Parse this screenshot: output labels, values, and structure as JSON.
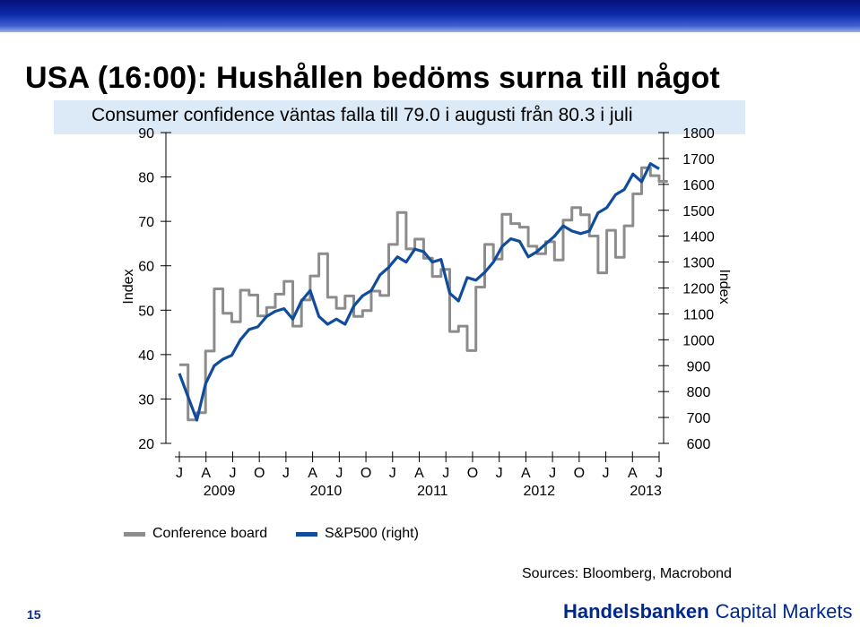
{
  "slide": {
    "title": "USA (16:00): Hushållen bedöms surna till något",
    "subtitle": "Consumer confidence väntas falla till 79.0 i augusti från 80.3 i juli",
    "page_number": "15",
    "sources": "Sources: Bloomberg, Macrobond",
    "brand_name": "Handelsbanken",
    "brand_sub": "Capital Markets"
  },
  "colors": {
    "conference_board": "#8c8c8c",
    "sp500": "#0f4c9c",
    "brand": "#00288c",
    "subtitle_bg": "#dce9f7"
  },
  "chart_data": {
    "type": "line",
    "left_axis": {
      "label": "Index",
      "ticks": [
        20,
        30,
        40,
        50,
        60,
        70,
        80,
        90
      ],
      "range": [
        20,
        90
      ]
    },
    "right_axis": {
      "label": "Index",
      "ticks": [
        600,
        700,
        800,
        900,
        1000,
        1100,
        1200,
        1300,
        1400,
        1500,
        1600,
        1700,
        1800
      ],
      "range": [
        600,
        1800
      ]
    },
    "x_tick_labels": [
      "J",
      "A",
      "J",
      "O",
      "J",
      "A",
      "J",
      "O",
      "J",
      "A",
      "J",
      "O",
      "J",
      "A",
      "J",
      "O",
      "J",
      "A",
      "J"
    ],
    "year_labels": [
      "2009",
      "2010",
      "2011",
      "2012",
      "2013"
    ],
    "grid": false,
    "legend_placement": "bottom-left",
    "series": [
      {
        "name": "Conference board",
        "axis": "left",
        "step": true,
        "x": [
          "2009-01",
          "2009-02",
          "2009-03",
          "2009-04",
          "2009-05",
          "2009-06",
          "2009-07",
          "2009-08",
          "2009-09",
          "2009-10",
          "2009-11",
          "2009-12",
          "2010-01",
          "2010-02",
          "2010-03",
          "2010-04",
          "2010-05",
          "2010-06",
          "2010-07",
          "2010-08",
          "2010-09",
          "2010-10",
          "2010-11",
          "2010-12",
          "2011-01",
          "2011-02",
          "2011-03",
          "2011-04",
          "2011-05",
          "2011-06",
          "2011-07",
          "2011-08",
          "2011-09",
          "2011-10",
          "2011-11",
          "2011-12",
          "2012-01",
          "2012-02",
          "2012-03",
          "2012-04",
          "2012-05",
          "2012-06",
          "2012-07",
          "2012-08",
          "2012-09",
          "2012-10",
          "2012-11",
          "2012-12",
          "2013-01",
          "2013-02",
          "2013-03",
          "2013-04",
          "2013-05",
          "2013-06",
          "2013-07",
          "2013-08"
        ],
        "values": [
          37.7,
          25.3,
          26.9,
          40.8,
          54.8,
          49.3,
          47.4,
          54.5,
          53.4,
          48.7,
          50.6,
          53.6,
          56.5,
          46.4,
          52.3,
          57.7,
          62.7,
          52.9,
          50.4,
          53.2,
          48.6,
          49.9,
          54.3,
          53.3,
          64.8,
          72.0,
          63.8,
          66.0,
          61.7,
          57.6,
          59.2,
          45.2,
          46.4,
          40.9,
          55.2,
          64.8,
          61.5,
          71.6,
          69.5,
          68.7,
          64.4,
          62.7,
          65.4,
          61.3,
          70.3,
          73.1,
          71.5,
          66.7,
          58.4,
          68.0,
          61.9,
          69.0,
          76.2,
          82.1,
          80.3,
          79.0
        ]
      },
      {
        "name": "S&P500 (right)",
        "axis": "right",
        "step": false,
        "x": [
          "2009-01",
          "2009-02",
          "2009-03",
          "2009-04",
          "2009-05",
          "2009-06",
          "2009-07",
          "2009-08",
          "2009-09",
          "2009-10",
          "2009-11",
          "2009-12",
          "2010-01",
          "2010-02",
          "2010-03",
          "2010-04",
          "2010-05",
          "2010-06",
          "2010-07",
          "2010-08",
          "2010-09",
          "2010-10",
          "2010-11",
          "2010-12",
          "2011-01",
          "2011-02",
          "2011-03",
          "2011-04",
          "2011-05",
          "2011-06",
          "2011-07",
          "2011-08",
          "2011-09",
          "2011-10",
          "2011-11",
          "2011-12",
          "2012-01",
          "2012-02",
          "2012-03",
          "2012-04",
          "2012-05",
          "2012-06",
          "2012-07",
          "2012-08",
          "2012-09",
          "2012-10",
          "2012-11",
          "2012-12",
          "2013-01",
          "2013-02",
          "2013-03",
          "2013-04",
          "2013-05",
          "2013-06",
          "2013-07",
          "2013-08"
        ],
        "values": [
          870,
          780,
          690,
          830,
          900,
          925,
          940,
          1000,
          1040,
          1050,
          1090,
          1110,
          1120,
          1080,
          1150,
          1190,
          1090,
          1060,
          1080,
          1060,
          1130,
          1170,
          1190,
          1250,
          1280,
          1320,
          1300,
          1350,
          1340,
          1300,
          1310,
          1180,
          1150,
          1240,
          1230,
          1260,
          1300,
          1360,
          1390,
          1380,
          1320,
          1340,
          1370,
          1400,
          1440,
          1420,
          1410,
          1420,
          1490,
          1510,
          1560,
          1580,
          1640,
          1610,
          1680,
          1660
        ]
      }
    ]
  }
}
